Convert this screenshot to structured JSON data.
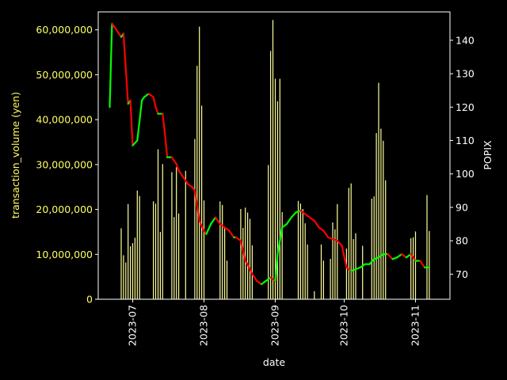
{
  "chart_data": {
    "type": "bar+line",
    "title": "",
    "xlabel": "date",
    "ylabel_left": "transaction_volume (yen)",
    "ylabel_right": "POPIX",
    "ylim_left": [
      0,
      64000000
    ],
    "ylim_right": [
      62.5,
      148.5
    ],
    "xlim": [
      "2023-06-16",
      "2023-11-16"
    ],
    "x_ticks": [
      "2023-07",
      "2023-08",
      "2023-09",
      "2023-10",
      "2023-11"
    ],
    "y_ticks_left": [
      "0",
      "10,000,000",
      "20,000,000",
      "30,000,000",
      "40,000,000",
      "50,000,000",
      "60,000,000"
    ],
    "y_ticks_left_values": [
      0,
      10000000,
      20000000,
      30000000,
      40000000,
      50000000,
      60000000
    ],
    "y_ticks_right": [
      70,
      80,
      90,
      100,
      110,
      120,
      130,
      140
    ],
    "grid": false,
    "legend": "none",
    "colors": {
      "background": "#000000",
      "axes": "#ffffff",
      "left_axis_label": "#ffff66",
      "bars": "#ffff99",
      "line_up": "#00ff00",
      "line_down": "#ff0000"
    },
    "bars": {
      "name": "transaction_volume",
      "x": [
        "2023-06-26",
        "2023-06-27",
        "2023-06-28",
        "2023-06-29",
        "2023-06-30",
        "2023-07-01",
        "2023-07-02",
        "2023-07-03",
        "2023-07-04",
        "2023-07-10",
        "2023-07-11",
        "2023-07-12",
        "2023-07-13",
        "2023-07-14",
        "2023-07-18",
        "2023-07-19",
        "2023-07-20",
        "2023-07-21",
        "2023-07-24",
        "2023-07-28",
        "2023-07-29",
        "2023-07-30",
        "2023-07-31",
        "2023-08-01",
        "2023-08-08",
        "2023-08-09",
        "2023-08-10",
        "2023-08-11",
        "2023-08-17",
        "2023-08-18",
        "2023-08-19",
        "2023-08-20",
        "2023-08-21",
        "2023-08-22",
        "2023-08-29",
        "2023-08-30",
        "2023-08-31",
        "2023-09-01",
        "2023-09-02",
        "2023-09-03",
        "2023-09-04",
        "2023-09-11",
        "2023-09-12",
        "2023-09-13",
        "2023-09-14",
        "2023-09-15",
        "2023-09-18",
        "2023-09-21",
        "2023-09-22",
        "2023-09-25",
        "2023-09-26",
        "2023-09-27",
        "2023-09-28",
        "2023-10-02",
        "2023-10-03",
        "2023-10-04",
        "2023-10-05",
        "2023-10-06",
        "2023-10-09",
        "2023-10-13",
        "2023-10-14",
        "2023-10-15",
        "2023-10-16",
        "2023-10-17",
        "2023-10-18",
        "2023-10-19",
        "2023-10-30",
        "2023-10-31",
        "2023-11-01",
        "2023-11-06",
        "2023-11-07"
      ],
      "values": [
        15800000,
        9800000,
        8200000,
        21200000,
        11800000,
        12500000,
        13700000,
        24200000,
        23000000,
        21800000,
        21300000,
        33400000,
        15000000,
        30100000,
        28300000,
        18300000,
        29400000,
        19100000,
        28600000,
        35700000,
        52000000,
        60700000,
        43100000,
        22000000,
        21800000,
        21000000,
        16000000,
        8600000,
        20100000,
        15900000,
        20400000,
        19300000,
        17900000,
        12000000,
        29900000,
        55300000,
        62200000,
        49100000,
        44100000,
        49100000,
        19400000,
        21900000,
        21300000,
        20100000,
        16900000,
        12200000,
        1800000,
        12200000,
        8600000,
        9000000,
        17100000,
        15600000,
        21200000,
        11300000,
        24800000,
        25800000,
        13400000,
        14700000,
        11900000,
        22400000,
        22900000,
        37000000,
        48200000,
        38000000,
        35300000,
        26500000,
        13600000,
        13800000,
        15100000,
        23200000,
        15200000
      ]
    },
    "popix": {
      "name": "POPIX",
      "x": [
        "2023-06-21",
        "2023-06-22",
        "2023-06-23",
        "2023-06-24",
        "2023-06-25",
        "2023-06-26",
        "2023-06-27",
        "2023-06-29",
        "2023-06-30",
        "2023-07-01",
        "2023-07-03",
        "2023-07-05",
        "2023-07-06",
        "2023-07-08",
        "2023-07-10",
        "2023-07-11",
        "2023-07-12",
        "2023-07-14",
        "2023-07-15",
        "2023-07-16",
        "2023-07-18",
        "2023-07-20",
        "2023-07-21",
        "2023-07-23",
        "2023-07-25",
        "2023-07-27",
        "2023-07-28",
        "2023-07-30",
        "2023-08-01",
        "2023-08-02",
        "2023-08-04",
        "2023-08-06",
        "2023-08-08",
        "2023-08-10",
        "2023-08-12",
        "2023-08-14",
        "2023-08-15",
        "2023-08-17",
        "2023-08-19",
        "2023-08-20",
        "2023-08-22",
        "2023-08-24",
        "2023-08-26",
        "2023-08-28",
        "2023-08-30",
        "2023-09-01",
        "2023-09-02",
        "2023-09-04",
        "2023-09-06",
        "2023-09-08",
        "2023-09-10",
        "2023-09-12",
        "2023-09-14",
        "2023-09-16",
        "2023-09-18",
        "2023-09-20",
        "2023-09-22",
        "2023-09-24",
        "2023-09-26",
        "2023-09-28",
        "2023-09-30",
        "2023-10-02",
        "2023-10-04",
        "2023-10-06",
        "2023-10-08",
        "2023-10-10",
        "2023-10-12",
        "2023-10-14",
        "2023-10-16",
        "2023-10-18",
        "2023-10-20",
        "2023-10-22",
        "2023-10-24",
        "2023-10-26",
        "2023-10-28",
        "2023-10-30",
        "2023-11-01",
        "2023-11-03",
        "2023-11-05",
        "2023-11-07"
      ],
      "values": [
        120,
        145,
        144,
        143,
        142,
        141,
        142,
        121,
        122,
        108.5,
        110,
        122,
        123,
        124,
        123,
        120,
        118,
        118,
        112,
        105,
        105,
        103,
        101,
        99,
        97,
        96,
        95,
        86,
        83,
        82,
        85,
        87,
        85,
        84,
        83,
        81,
        81,
        80,
        74,
        73,
        70,
        68,
        67,
        68,
        69,
        68,
        76,
        84,
        85,
        87,
        88.5,
        89,
        88,
        87,
        86,
        84,
        83,
        81,
        80.5,
        80,
        78.5,
        72,
        71,
        71.5,
        72,
        73,
        73,
        74.5,
        75,
        76,
        76,
        74.5,
        75,
        76,
        75,
        76,
        74,
        74,
        72,
        72
      ]
    }
  }
}
